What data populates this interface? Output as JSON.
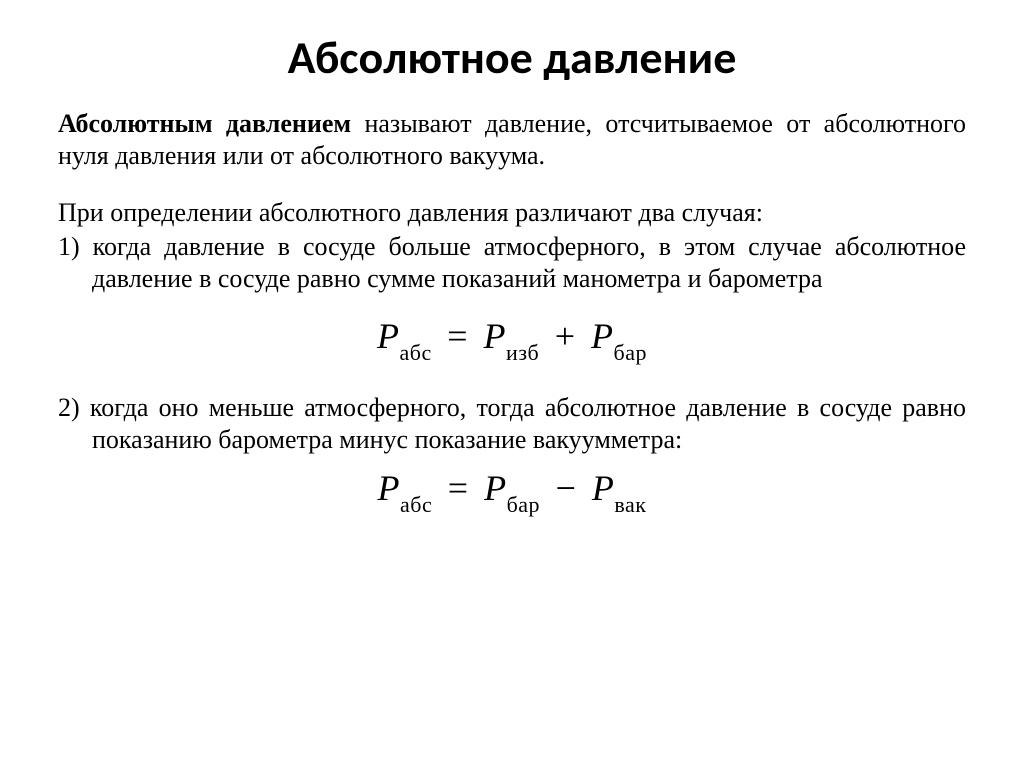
{
  "title": "Абсолютное давление",
  "definition_lead": "Абсолютным давлением",
  "definition_rest": " называют давление, отсчитываемое от абсолютного нуля давления или от абсолютного вакуума.",
  "cases_intro": "При определении абсолютного давления различают два случая:",
  "case1_num": "1)",
  "case1_text": "когда давление в сосуде больше атмосферного, в этом случае абсолютное давление в сосуде равно сумме показаний манометра и барометра",
  "case2_num": "2)",
  "case2_text": "когда оно меньше атмосферного, тогда абсолютное давление в сосуде равно показанию барометра минус показание вакуумметра:",
  "formula1": {
    "P": "P",
    "sub_abs": "абс",
    "eq": "=",
    "sub_izb": "изб",
    "plus": "+",
    "sub_bar": "бар"
  },
  "formula2": {
    "P": "P",
    "sub_abs": "абс",
    "eq": "=",
    "sub_bar": "бар",
    "minus": "−",
    "sub_vak": "вак"
  },
  "style": {
    "title_fontsize": 46,
    "body_fontsize": 26,
    "formula_fontsize": 36,
    "sub_fontsize": 22,
    "title_font": "Calibri",
    "body_font": "Times New Roman",
    "text_color": "#000000",
    "background": "#ffffff"
  }
}
